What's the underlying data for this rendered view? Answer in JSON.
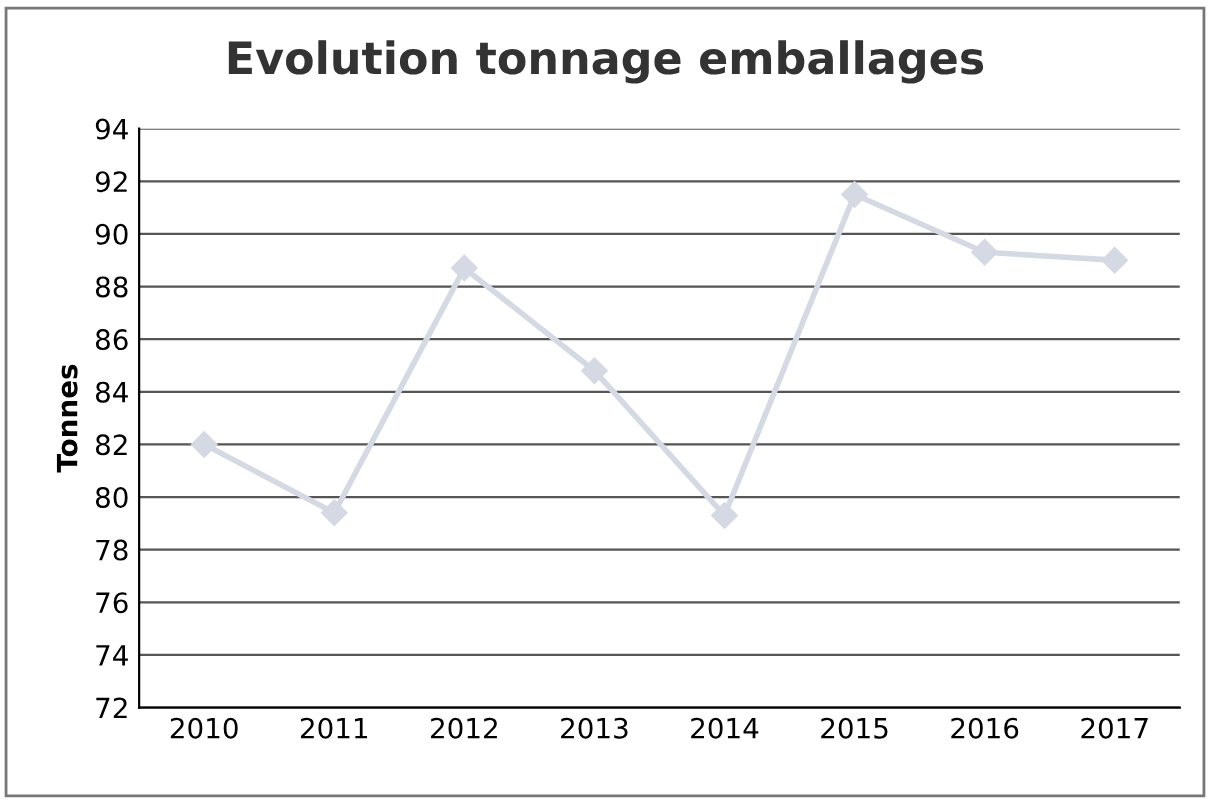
{
  "chart_data": {
    "type": "line",
    "title": "Evolution tonnage emballages",
    "ylabel": "Tonnes",
    "categories": [
      "2010",
      "2011",
      "2012",
      "2013",
      "2014",
      "2015",
      "2016",
      "2017"
    ],
    "series": [
      {
        "color": "#d5d9e4",
        "values": [
          82.0,
          79.4,
          88.7,
          84.8,
          79.3,
          91.5,
          89.3,
          89.0
        ]
      }
    ],
    "ylim": [
      72,
      94
    ],
    "yticks": [
      72,
      74,
      76,
      78,
      80,
      82,
      84,
      86,
      88,
      90,
      92,
      94
    ],
    "grid": "y",
    "marker": "diamond",
    "line_style": "solid",
    "legend": false
  }
}
